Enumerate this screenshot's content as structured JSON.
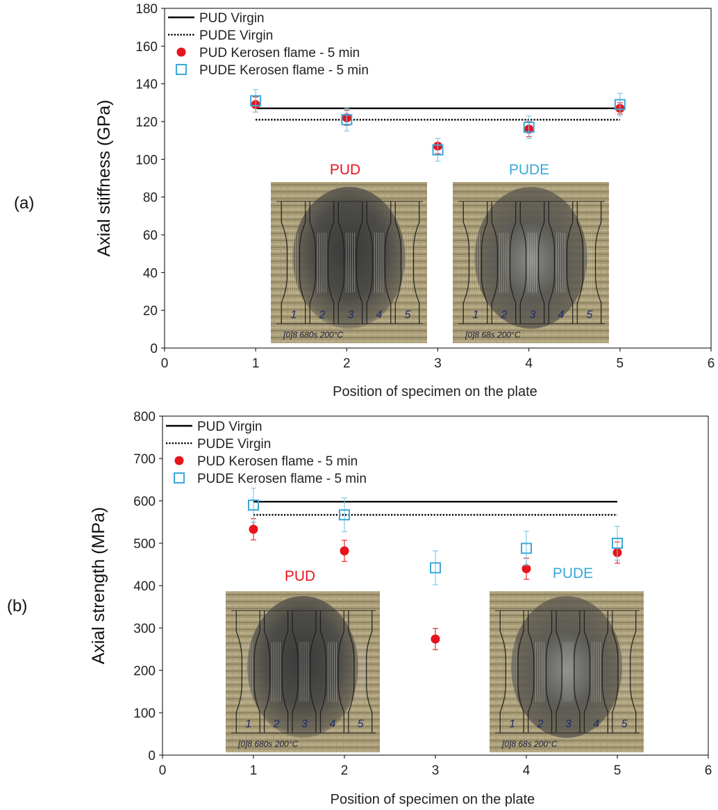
{
  "chart_data": [
    {
      "panel_label": "(a)",
      "type": "scatter",
      "ylabel": "Axial stiffness (GPa)",
      "xlabel": "Position of specimen on the plate",
      "xlim": [
        0,
        6
      ],
      "ylim": [
        0,
        180
      ],
      "xticks": [
        0,
        1,
        2,
        3,
        4,
        5,
        6
      ],
      "yticks": [
        0,
        20,
        40,
        60,
        80,
        100,
        120,
        140,
        160,
        180
      ],
      "grid": false,
      "legend_position": "top-left",
      "series": [
        {
          "name": "PUD Virgin",
          "kind": "line",
          "style": "solid",
          "color": "#000000",
          "x": [
            1,
            5
          ],
          "y": [
            127,
            127
          ]
        },
        {
          "name": "PUDE Virgin",
          "kind": "line",
          "style": "dotted",
          "color": "#000000",
          "x": [
            1,
            5
          ],
          "y": [
            121,
            121
          ]
        },
        {
          "name": "PUD Kerosen flame - 5 min",
          "kind": "points",
          "marker": "circle",
          "color": "#e8141c",
          "x": [
            1,
            2,
            3,
            4,
            5
          ],
          "y": [
            129,
            122,
            107,
            116,
            127
          ],
          "err": [
            4,
            4,
            4,
            4,
            3
          ]
        },
        {
          "name": "PUDE Kerosen flame - 5 min",
          "kind": "points",
          "marker": "square",
          "color": "#3aa8d8",
          "x": [
            1,
            2,
            3,
            4,
            5
          ],
          "y": [
            131,
            121,
            105,
            117,
            129
          ],
          "err": [
            6,
            6,
            6,
            6,
            6
          ]
        }
      ],
      "photos": [
        {
          "label": "PUD",
          "label_color": "#e8141c",
          "specimen_numbers": [
            "1",
            "2",
            "3",
            "4",
            "5"
          ],
          "caption": "[0]8 680s 200°C"
        },
        {
          "label": "PUDE",
          "label_color": "#3aa8d8",
          "specimen_numbers": [
            "1",
            "2",
            "3",
            "4",
            "5"
          ],
          "caption": "[0]8 68s 200°C"
        }
      ]
    },
    {
      "panel_label": "(b)",
      "type": "scatter",
      "ylabel": "Axial strength (MPa)",
      "xlabel": "Position of specimen on the plate",
      "xlim": [
        0,
        6
      ],
      "ylim": [
        0,
        800
      ],
      "xticks": [
        0,
        1,
        2,
        3,
        4,
        5,
        6
      ],
      "yticks": [
        0,
        100,
        200,
        300,
        400,
        500,
        600,
        700,
        800
      ],
      "grid": false,
      "legend_position": "top-left",
      "series": [
        {
          "name": "PUD Virgin",
          "kind": "line",
          "style": "solid",
          "color": "#000000",
          "x": [
            1,
            5
          ],
          "y": [
            598,
            598
          ]
        },
        {
          "name": "PUDE Virgin",
          "kind": "line",
          "style": "dotted",
          "color": "#000000",
          "x": [
            1,
            5
          ],
          "y": [
            567,
            567
          ]
        },
        {
          "name": "PUD Kerosen flame - 5 min",
          "kind": "points",
          "marker": "circle",
          "color": "#e8141c",
          "x": [
            1,
            2,
            3,
            4,
            5
          ],
          "y": [
            533,
            482,
            274,
            440,
            478
          ],
          "err": [
            25,
            25,
            25,
            25,
            25
          ]
        },
        {
          "name": "PUDE Kerosen flame - 5 min",
          "kind": "points",
          "marker": "square",
          "color": "#3aa8d8",
          "x": [
            1,
            2,
            3,
            4,
            5
          ],
          "y": [
            590,
            567,
            442,
            488,
            500
          ],
          "err": [
            40,
            40,
            40,
            40,
            40
          ]
        }
      ],
      "photos": [
        {
          "label": "PUD",
          "label_color": "#e8141c",
          "specimen_numbers": [
            "1",
            "2",
            "3",
            "4",
            "5"
          ],
          "caption": "[0]8 680s 200°C"
        },
        {
          "label": "PUDE",
          "label_color": "#3aa8d8",
          "specimen_numbers": [
            "1",
            "2",
            "3",
            "4",
            "5"
          ],
          "caption": "[0]8 68s 200°C"
        }
      ]
    }
  ]
}
